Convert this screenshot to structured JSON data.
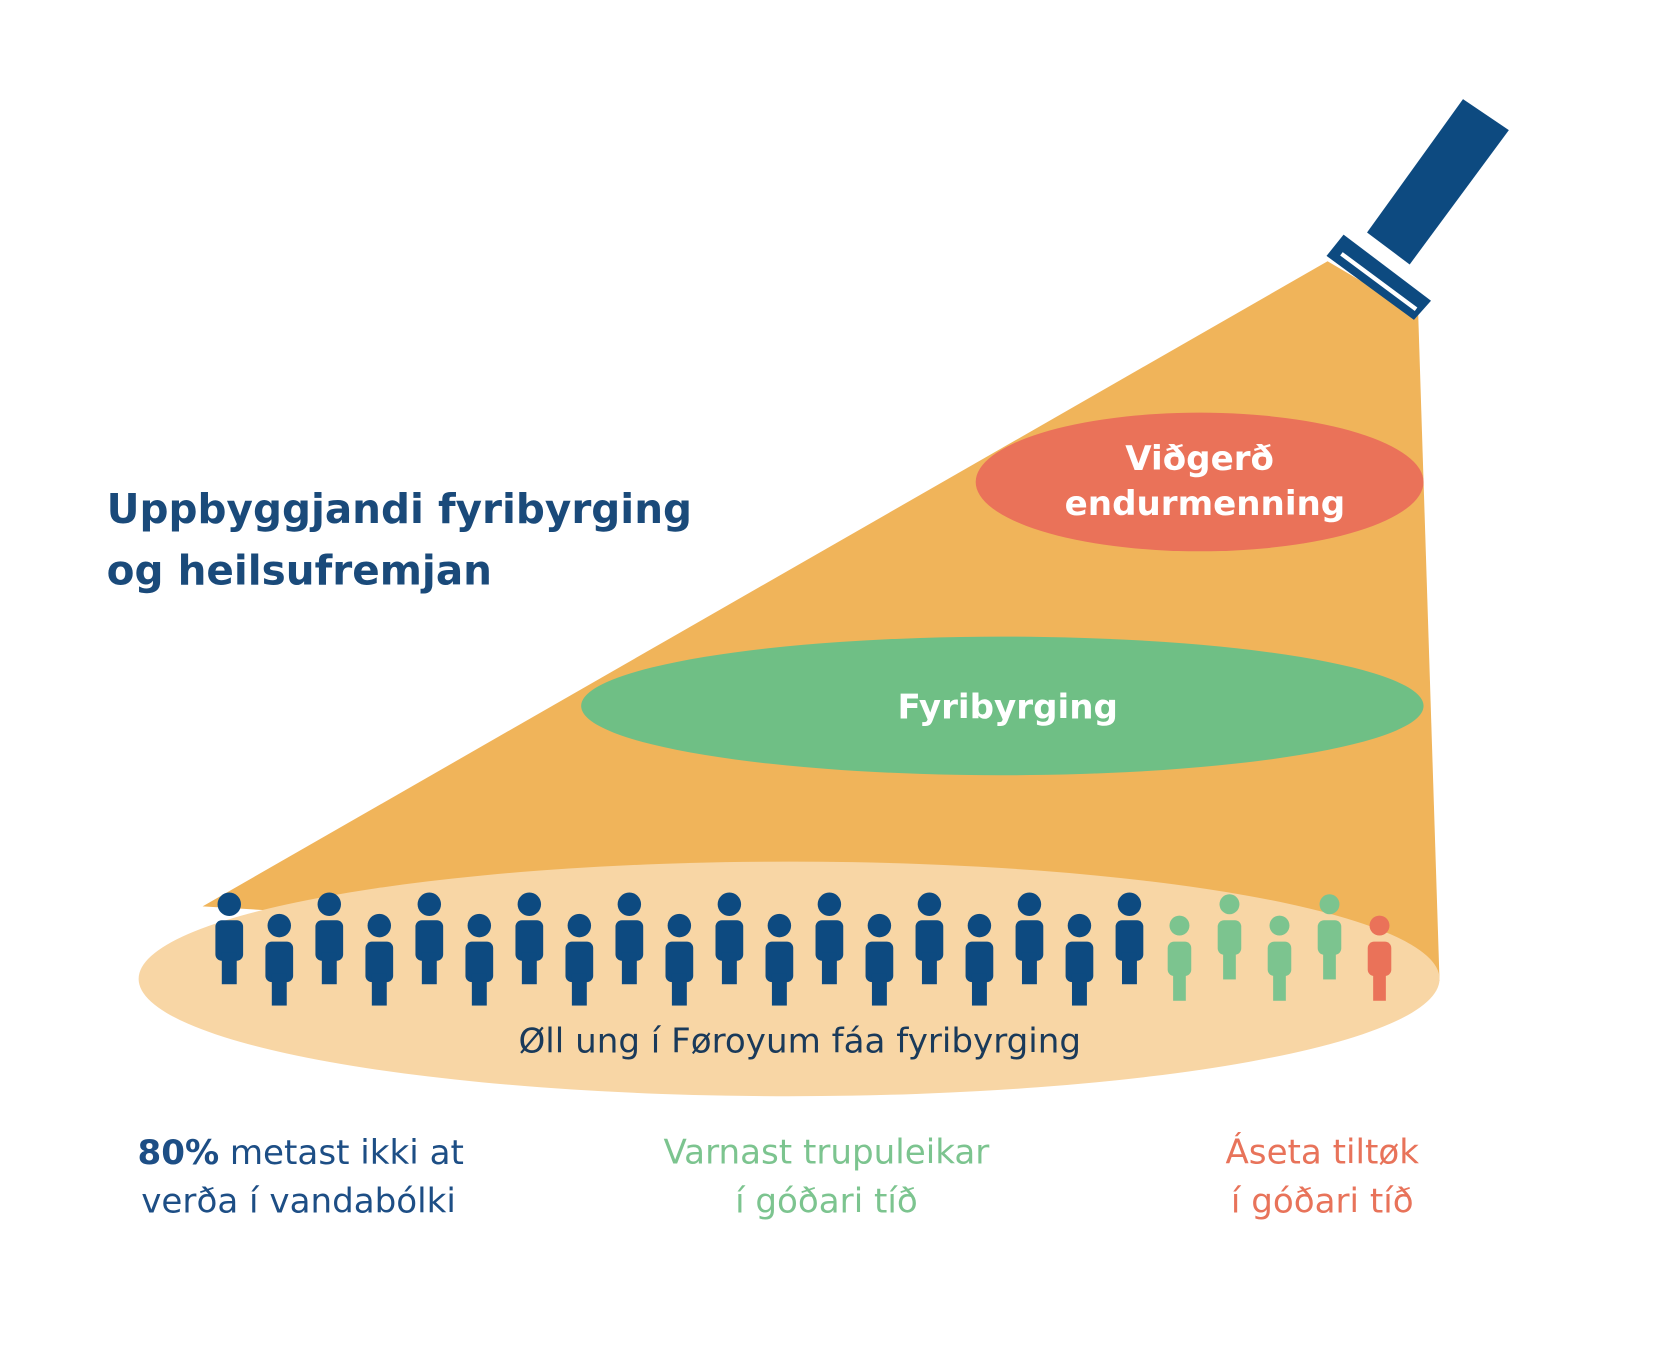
{
  "heading": {
    "lines": [
      "Uppbyggjandi fyribyrging",
      "og heilsufremjan"
    ]
  },
  "tiers": [
    {
      "lines": [
        "Viðgerð",
        "endurmenning"
      ]
    },
    {
      "lines": [
        "Fyribyrging"
      ]
    }
  ],
  "base": {
    "label": "Øll ung í Føroyum fáa fyribyrging"
  },
  "captions": [
    {
      "highlight": "80%",
      "lines": [
        "metast ikki at",
        "verða í vandabólki"
      ]
    },
    {
      "lines": [
        "Varnast trupuleikar",
        "í góðari tíð"
      ]
    },
    {
      "lines": [
        "Áseta tiltøk",
        "í góðari tíð"
      ]
    }
  ]
}
